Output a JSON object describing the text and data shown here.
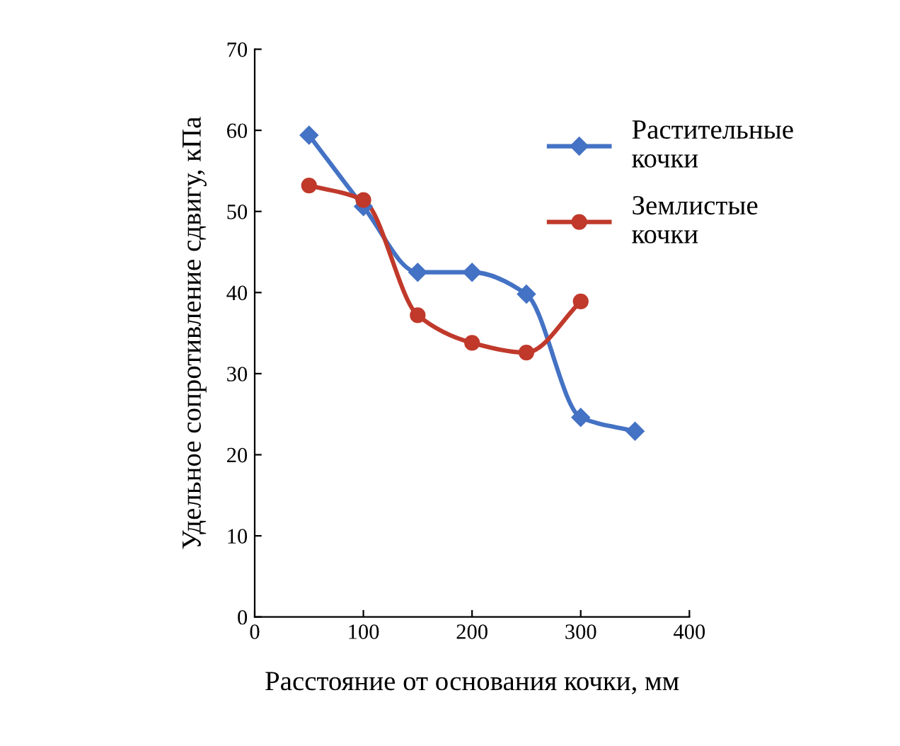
{
  "chart_data": {
    "type": "line",
    "xlabel": "Расстояние от основания кочки, мм",
    "ylabel": "Удельное сопротивление сдвигу, кПа",
    "xlim": [
      0,
      400
    ],
    "xticks": [
      0,
      100,
      200,
      300,
      400
    ],
    "ylim": [
      0,
      70
    ],
    "yticks": [
      0,
      10,
      20,
      30,
      40,
      50,
      60,
      70
    ],
    "grid": false,
    "legend": "top right",
    "series": [
      {
        "name": "Растительные кочки",
        "color": "#4472c4",
        "marker": "diamond",
        "x": [
          50,
          100,
          150,
          200,
          250,
          300,
          350
        ],
        "values": [
          59.4,
          50.6,
          42.5,
          42.5,
          39.8,
          24.6,
          22.9
        ]
      },
      {
        "name": "Землистые кочки",
        "color": "#c0392b",
        "marker": "circle",
        "x": [
          50,
          100,
          150,
          200,
          250,
          300
        ],
        "values": [
          53.2,
          51.4,
          37.2,
          33.8,
          32.6,
          38.9
        ]
      }
    ]
  }
}
